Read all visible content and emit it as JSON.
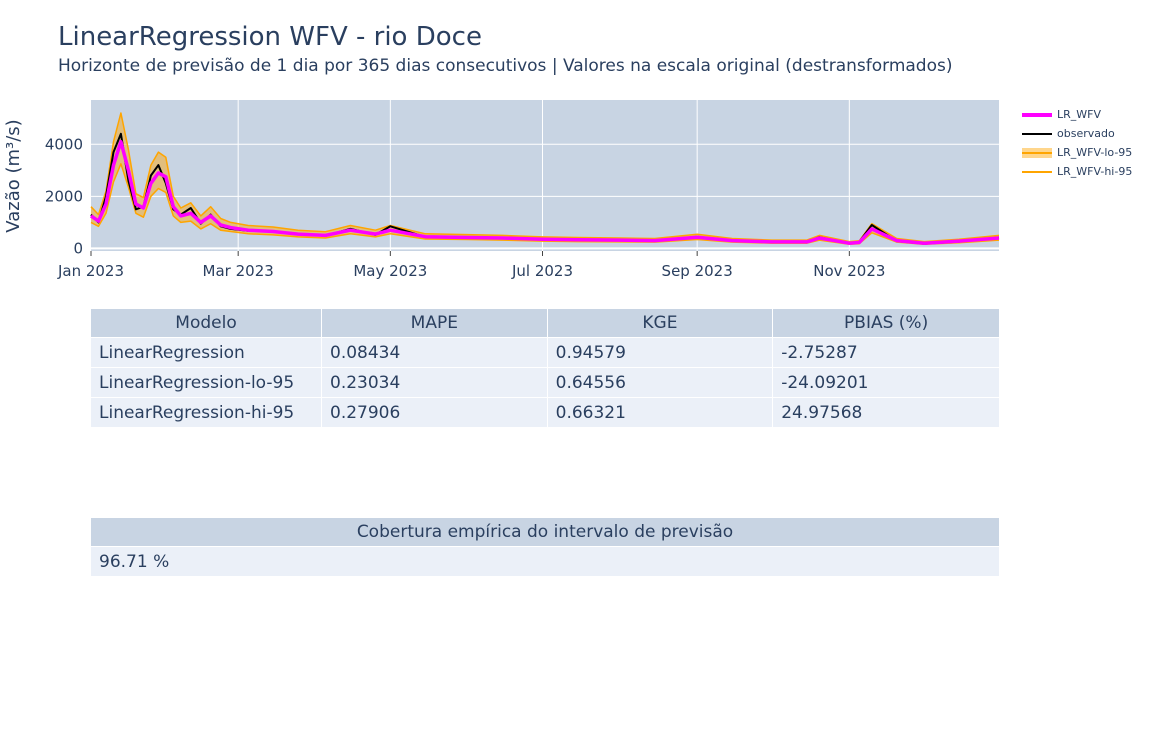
{
  "page": {
    "title": "LinearRegression WFV - rio Doce",
    "subtitle": "Horizonte de previsão de 1 dia por 365 dias consecutivos | Valores na escala original (destransformados)"
  },
  "chart_data": {
    "type": "line",
    "ylabel": "Vazão (m³/s)",
    "xlabel": "",
    "x_ticks": [
      "Jan 2023",
      "Mar 2023",
      "May 2023",
      "Jul 2023",
      "Sep 2023",
      "Nov 2023"
    ],
    "y_ticks": [
      0,
      2000,
      4000
    ],
    "xlim": [
      "2023-01-01",
      "2023-12-31"
    ],
    "ylim": [
      -100,
      5700
    ],
    "grid": true,
    "legend_position": "right",
    "colors": {
      "prediction": "#ff00ff",
      "observed": "#000000",
      "interval": "#ffa500",
      "band_fill": "#ffa500",
      "plot_bg": "#c8d4e3"
    },
    "legend": [
      "LR_WFV",
      "observado",
      "LR_WFV-lo-95",
      "LR_WFV-hi-95"
    ],
    "series": [
      {
        "name": "LR_WFV",
        "x": [
          "2023-01-01",
          "2023-01-04",
          "2023-01-07",
          "2023-01-10",
          "2023-01-13",
          "2023-01-16",
          "2023-01-19",
          "2023-01-22",
          "2023-01-25",
          "2023-01-28",
          "2023-01-31",
          "2023-02-03",
          "2023-02-06",
          "2023-02-10",
          "2023-02-14",
          "2023-02-18",
          "2023-02-22",
          "2023-02-26",
          "2023-03-05",
          "2023-03-15",
          "2023-03-25",
          "2023-04-05",
          "2023-04-15",
          "2023-04-25",
          "2023-05-01",
          "2023-05-15",
          "2023-06-01",
          "2023-06-15",
          "2023-07-01",
          "2023-07-15",
          "2023-08-01",
          "2023-08-15",
          "2023-09-01",
          "2023-09-15",
          "2023-10-01",
          "2023-10-15",
          "2023-10-20",
          "2023-11-01",
          "2023-11-05",
          "2023-11-10",
          "2023-11-20",
          "2023-12-01",
          "2023-12-15",
          "2023-12-31"
        ],
        "values": [
          1250,
          1050,
          1700,
          3200,
          4100,
          3000,
          1700,
          1550,
          2500,
          2900,
          2750,
          1600,
          1250,
          1350,
          1000,
          1250,
          900,
          800,
          700,
          650,
          550,
          500,
          700,
          550,
          700,
          450,
          420,
          400,
          350,
          330,
          320,
          300,
          430,
          300,
          250,
          250,
          400,
          200,
          230,
          750,
          300,
          200,
          280,
          400
        ]
      },
      {
        "name": "observado",
        "x": [
          "2023-01-01",
          "2023-01-04",
          "2023-01-07",
          "2023-01-10",
          "2023-01-13",
          "2023-01-16",
          "2023-01-19",
          "2023-01-22",
          "2023-01-25",
          "2023-01-28",
          "2023-01-31",
          "2023-02-03",
          "2023-02-06",
          "2023-02-10",
          "2023-02-14",
          "2023-02-18",
          "2023-02-22",
          "2023-02-26",
          "2023-03-05",
          "2023-03-15",
          "2023-03-25",
          "2023-04-05",
          "2023-04-15",
          "2023-04-25",
          "2023-05-01",
          "2023-05-15",
          "2023-06-01",
          "2023-06-15",
          "2023-07-01",
          "2023-07-15",
          "2023-08-01",
          "2023-08-15",
          "2023-09-01",
          "2023-09-15",
          "2023-10-01",
          "2023-10-15",
          "2023-10-20",
          "2023-11-01",
          "2023-11-05",
          "2023-11-10",
          "2023-11-20",
          "2023-12-01",
          "2023-12-15",
          "2023-12-31"
        ],
        "values": [
          1300,
          1000,
          2000,
          3700,
          4400,
          2600,
          1500,
          1600,
          2800,
          3200,
          2500,
          1500,
          1300,
          1550,
          950,
          1300,
          850,
          750,
          680,
          650,
          560,
          480,
          750,
          520,
          850,
          440,
          420,
          390,
          340,
          320,
          310,
          290,
          450,
          290,
          240,
          240,
          430,
          190,
          250,
          900,
          280,
          180,
          260,
          420
        ]
      },
      {
        "name": "LR_WFV-lo-95",
        "x": [
          "2023-01-01",
          "2023-01-04",
          "2023-01-07",
          "2023-01-10",
          "2023-01-13",
          "2023-01-16",
          "2023-01-19",
          "2023-01-22",
          "2023-01-25",
          "2023-01-28",
          "2023-01-31",
          "2023-02-03",
          "2023-02-06",
          "2023-02-10",
          "2023-02-14",
          "2023-02-18",
          "2023-02-22",
          "2023-02-26",
          "2023-03-05",
          "2023-03-15",
          "2023-03-25",
          "2023-04-05",
          "2023-04-15",
          "2023-04-25",
          "2023-05-01",
          "2023-05-15",
          "2023-06-01",
          "2023-06-15",
          "2023-07-01",
          "2023-07-15",
          "2023-08-01",
          "2023-08-15",
          "2023-09-01",
          "2023-09-15",
          "2023-10-01",
          "2023-10-15",
          "2023-10-20",
          "2023-11-01",
          "2023-11-05",
          "2023-11-10",
          "2023-11-20",
          "2023-12-01",
          "2023-12-15",
          "2023-12-31"
        ],
        "values": [
          1000,
          850,
          1350,
          2550,
          3250,
          2350,
          1350,
          1200,
          2000,
          2300,
          2150,
          1250,
          1000,
          1050,
          750,
          950,
          700,
          650,
          560,
          520,
          440,
          400,
          560,
          440,
          560,
          360,
          340,
          320,
          280,
          260,
          250,
          240,
          340,
          240,
          200,
          200,
          320,
          160,
          180,
          600,
          240,
          160,
          220,
          320
        ]
      },
      {
        "name": "LR_WFV-hi-95",
        "x": [
          "2023-01-01",
          "2023-01-04",
          "2023-01-07",
          "2023-01-10",
          "2023-01-13",
          "2023-01-16",
          "2023-01-19",
          "2023-01-22",
          "2023-01-25",
          "2023-01-28",
          "2023-01-31",
          "2023-02-03",
          "2023-02-06",
          "2023-02-10",
          "2023-02-14",
          "2023-02-18",
          "2023-02-22",
          "2023-02-26",
          "2023-03-05",
          "2023-03-15",
          "2023-03-25",
          "2023-04-05",
          "2023-04-15",
          "2023-04-25",
          "2023-05-01",
          "2023-05-15",
          "2023-06-01",
          "2023-06-15",
          "2023-07-01",
          "2023-07-15",
          "2023-08-01",
          "2023-08-15",
          "2023-09-01",
          "2023-09-15",
          "2023-10-01",
          "2023-10-15",
          "2023-10-20",
          "2023-11-01",
          "2023-11-05",
          "2023-11-10",
          "2023-11-20",
          "2023-12-01",
          "2023-12-15",
          "2023-12-31"
        ],
        "values": [
          1600,
          1300,
          2200,
          4100,
          5200,
          3800,
          2100,
          1950,
          3200,
          3700,
          3500,
          2000,
          1550,
          1750,
          1250,
          1600,
          1150,
          1000,
          880,
          820,
          700,
          640,
          880,
          700,
          880,
          560,
          530,
          500,
          440,
          420,
          400,
          380,
          540,
          380,
          320,
          320,
          500,
          260,
          290,
          950,
          380,
          260,
          350,
          500
        ]
      }
    ]
  },
  "metrics_table": {
    "columns": [
      "Modelo",
      "MAPE",
      "KGE",
      "PBIAS (%)"
    ],
    "rows": [
      [
        "LinearRegression",
        "0.08434",
        "0.94579",
        "-2.75287"
      ],
      [
        "LinearRegression-lo-95",
        "0.23034",
        "0.64556",
        "-24.09201"
      ],
      [
        "LinearRegression-hi-95",
        "0.27906",
        "0.66321",
        "24.97568"
      ]
    ]
  },
  "coverage_table": {
    "header": "Cobertura empírica do intervalo de previsão",
    "value": "96.71 %"
  }
}
